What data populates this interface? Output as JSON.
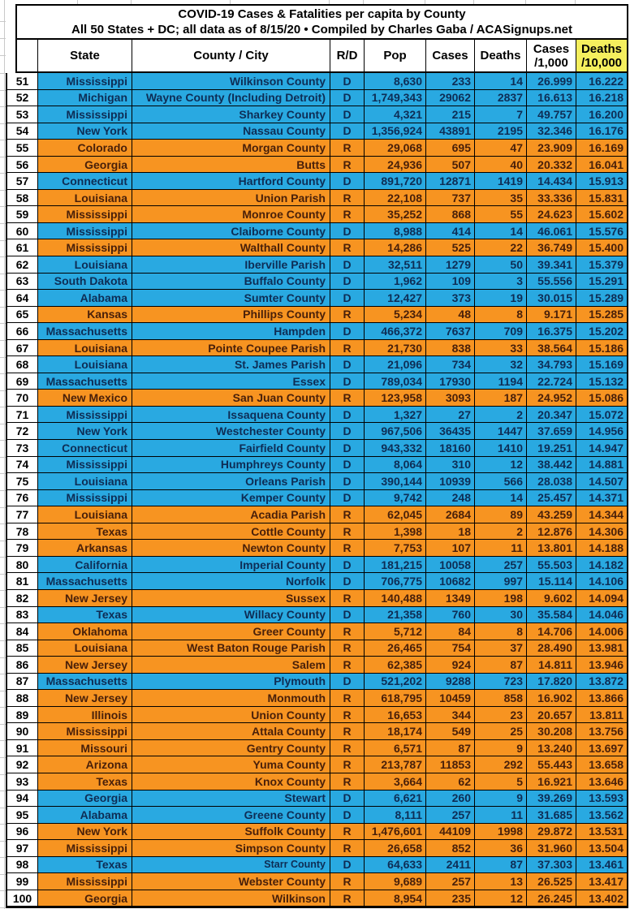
{
  "title": {
    "line1": "COVID-19 Cases & Fatalities per capita by County",
    "line2": "All 50 States + DC; all data as of 8/15/20  • Compiled by Charles Gaba / ACASignups.net"
  },
  "colors": {
    "dem_row": "#29A9E1",
    "rep_row": "#F79421",
    "dem_text": "#0E2D55",
    "rep_text": "#49200A",
    "deaths_header_bg": "#F5EF5E"
  },
  "table": {
    "columns": [
      "",
      "State",
      "County / City",
      "R/D",
      "Pop",
      "Cases",
      "Deaths",
      "Cases\n/1,000",
      "Deaths\n/10,000"
    ],
    "rows": [
      {
        "rank": "51",
        "state": "Mississippi",
        "county": "Wilkinson County",
        "party": "D",
        "pop": "8,630",
        "cases": "233",
        "deaths": "14",
        "per1000": "26.999",
        "per10000": "16.222"
      },
      {
        "rank": "52",
        "state": "Michigan",
        "county": "Wayne County (Including Detroit)",
        "party": "D",
        "pop": "1,749,343",
        "cases": "29062",
        "deaths": "2837",
        "per1000": "16.613",
        "per10000": "16.218"
      },
      {
        "rank": "53",
        "state": "Mississippi",
        "county": "Sharkey County",
        "party": "D",
        "pop": "4,321",
        "cases": "215",
        "deaths": "7",
        "per1000": "49.757",
        "per10000": "16.200"
      },
      {
        "rank": "54",
        "state": "New York",
        "county": "Nassau County",
        "party": "D",
        "pop": "1,356,924",
        "cases": "43891",
        "deaths": "2195",
        "per1000": "32.346",
        "per10000": "16.176"
      },
      {
        "rank": "55",
        "state": "Colorado",
        "county": "Morgan County",
        "party": "R",
        "pop": "29,068",
        "cases": "695",
        "deaths": "47",
        "per1000": "23.909",
        "per10000": "16.169"
      },
      {
        "rank": "56",
        "state": "Georgia",
        "county": "Butts",
        "party": "R",
        "pop": "24,936",
        "cases": "507",
        "deaths": "40",
        "per1000": "20.332",
        "per10000": "16.041"
      },
      {
        "rank": "57",
        "state": "Connecticut",
        "county": "Hartford County",
        "party": "D",
        "pop": "891,720",
        "cases": "12871",
        "deaths": "1419",
        "per1000": "14.434",
        "per10000": "15.913"
      },
      {
        "rank": "58",
        "state": "Louisiana",
        "county": "Union Parish",
        "party": "R",
        "pop": "22,108",
        "cases": "737",
        "deaths": "35",
        "per1000": "33.336",
        "per10000": "15.831"
      },
      {
        "rank": "59",
        "state": "Mississippi",
        "county": "Monroe County",
        "party": "R",
        "pop": "35,252",
        "cases": "868",
        "deaths": "55",
        "per1000": "24.623",
        "per10000": "15.602"
      },
      {
        "rank": "60",
        "state": "Mississippi",
        "county": "Claiborne County",
        "party": "D",
        "pop": "8,988",
        "cases": "414",
        "deaths": "14",
        "per1000": "46.061",
        "per10000": "15.576"
      },
      {
        "rank": "61",
        "state": "Mississippi",
        "county": "Walthall County",
        "party": "R",
        "pop": "14,286",
        "cases": "525",
        "deaths": "22",
        "per1000": "36.749",
        "per10000": "15.400"
      },
      {
        "rank": "62",
        "state": "Louisiana",
        "county": "Iberville Parish",
        "party": "D",
        "pop": "32,511",
        "cases": "1279",
        "deaths": "50",
        "per1000": "39.341",
        "per10000": "15.379"
      },
      {
        "rank": "63",
        "state": "South Dakota",
        "county": "Buffalo County",
        "party": "D",
        "pop": "1,962",
        "cases": "109",
        "deaths": "3",
        "per1000": "55.556",
        "per10000": "15.291"
      },
      {
        "rank": "64",
        "state": "Alabama",
        "county": "Sumter County",
        "party": "D",
        "pop": "12,427",
        "cases": "373",
        "deaths": "19",
        "per1000": "30.015",
        "per10000": "15.289"
      },
      {
        "rank": "65",
        "state": "Kansas",
        "county": "Phillips County",
        "party": "R",
        "pop": "5,234",
        "cases": "48",
        "deaths": "8",
        "per1000": "9.171",
        "per10000": "15.285"
      },
      {
        "rank": "66",
        "state": "Massachusetts",
        "county": "Hampden",
        "party": "D",
        "pop": "466,372",
        "cases": "7637",
        "deaths": "709",
        "per1000": "16.375",
        "per10000": "15.202"
      },
      {
        "rank": "67",
        "state": "Louisiana",
        "county": "Pointe Coupee Parish",
        "party": "R",
        "pop": "21,730",
        "cases": "838",
        "deaths": "33",
        "per1000": "38.564",
        "per10000": "15.186"
      },
      {
        "rank": "68",
        "state": "Louisiana",
        "county": "St. James Parish",
        "party": "D",
        "pop": "21,096",
        "cases": "734",
        "deaths": "32",
        "per1000": "34.793",
        "per10000": "15.169"
      },
      {
        "rank": "69",
        "state": "Massachusetts",
        "county": "Essex",
        "party": "D",
        "pop": "789,034",
        "cases": "17930",
        "deaths": "1194",
        "per1000": "22.724",
        "per10000": "15.132"
      },
      {
        "rank": "70",
        "state": "New Mexico",
        "county": "San Juan County",
        "party": "R",
        "pop": "123,958",
        "cases": "3093",
        "deaths": "187",
        "per1000": "24.952",
        "per10000": "15.086"
      },
      {
        "rank": "71",
        "state": "Mississippi",
        "county": "Issaquena County",
        "party": "D",
        "pop": "1,327",
        "cases": "27",
        "deaths": "2",
        "per1000": "20.347",
        "per10000": "15.072"
      },
      {
        "rank": "72",
        "state": "New York",
        "county": "Westchester County",
        "party": "D",
        "pop": "967,506",
        "cases": "36435",
        "deaths": "1447",
        "per1000": "37.659",
        "per10000": "14.956"
      },
      {
        "rank": "73",
        "state": "Connecticut",
        "county": "Fairfield County",
        "party": "D",
        "pop": "943,332",
        "cases": "18160",
        "deaths": "1410",
        "per1000": "19.251",
        "per10000": "14.947"
      },
      {
        "rank": "74",
        "state": "Mississippi",
        "county": "Humphreys County",
        "party": "D",
        "pop": "8,064",
        "cases": "310",
        "deaths": "12",
        "per1000": "38.442",
        "per10000": "14.881"
      },
      {
        "rank": "75",
        "state": "Louisiana",
        "county": "Orleans Parish",
        "party": "D",
        "pop": "390,144",
        "cases": "10939",
        "deaths": "566",
        "per1000": "28.038",
        "per10000": "14.507"
      },
      {
        "rank": "76",
        "state": "Mississippi",
        "county": "Kemper County",
        "party": "D",
        "pop": "9,742",
        "cases": "248",
        "deaths": "14",
        "per1000": "25.457",
        "per10000": "14.371"
      },
      {
        "rank": "77",
        "state": "Louisiana",
        "county": "Acadia Parish",
        "party": "R",
        "pop": "62,045",
        "cases": "2684",
        "deaths": "89",
        "per1000": "43.259",
        "per10000": "14.344"
      },
      {
        "rank": "78",
        "state": "Texas",
        "county": "Cottle County",
        "party": "R",
        "pop": "1,398",
        "cases": "18",
        "deaths": "2",
        "per1000": "12.876",
        "per10000": "14.306"
      },
      {
        "rank": "79",
        "state": "Arkansas",
        "county": "Newton County",
        "party": "R",
        "pop": "7,753",
        "cases": "107",
        "deaths": "11",
        "per1000": "13.801",
        "per10000": "14.188"
      },
      {
        "rank": "80",
        "state": "California",
        "county": "Imperial County",
        "party": "D",
        "pop": "181,215",
        "cases": "10058",
        "deaths": "257",
        "per1000": "55.503",
        "per10000": "14.182"
      },
      {
        "rank": "81",
        "state": "Massachusetts",
        "county": "Norfolk",
        "party": "D",
        "pop": "706,775",
        "cases": "10682",
        "deaths": "997",
        "per1000": "15.114",
        "per10000": "14.106"
      },
      {
        "rank": "82",
        "state": "New Jersey",
        "county": "Sussex",
        "party": "R",
        "pop": "140,488",
        "cases": "1349",
        "deaths": "198",
        "per1000": "9.602",
        "per10000": "14.094"
      },
      {
        "rank": "83",
        "state": "Texas",
        "county": "Willacy County",
        "party": "D",
        "pop": "21,358",
        "cases": "760",
        "deaths": "30",
        "per1000": "35.584",
        "per10000": "14.046"
      },
      {
        "rank": "84",
        "state": "Oklahoma",
        "county": "Greer County",
        "party": "R",
        "pop": "5,712",
        "cases": "84",
        "deaths": "8",
        "per1000": "14.706",
        "per10000": "14.006"
      },
      {
        "rank": "85",
        "state": "Louisiana",
        "county": "West Baton Rouge Parish",
        "party": "R",
        "pop": "26,465",
        "cases": "754",
        "deaths": "37",
        "per1000": "28.490",
        "per10000": "13.981"
      },
      {
        "rank": "86",
        "state": "New Jersey",
        "county": "Salem",
        "party": "R",
        "pop": "62,385",
        "cases": "924",
        "deaths": "87",
        "per1000": "14.811",
        "per10000": "13.946"
      },
      {
        "rank": "87",
        "state": "Massachusetts",
        "county": "Plymouth",
        "party": "D",
        "pop": "521,202",
        "cases": "9288",
        "deaths": "723",
        "per1000": "17.820",
        "per10000": "13.872"
      },
      {
        "rank": "88",
        "state": "New Jersey",
        "county": "Monmouth",
        "party": "R",
        "pop": "618,795",
        "cases": "10459",
        "deaths": "858",
        "per1000": "16.902",
        "per10000": "13.866"
      },
      {
        "rank": "89",
        "state": "Illinois",
        "county": "Union County",
        "party": "R",
        "pop": "16,653",
        "cases": "344",
        "deaths": "23",
        "per1000": "20.657",
        "per10000": "13.811"
      },
      {
        "rank": "90",
        "state": "Mississippi",
        "county": "Attala County",
        "party": "R",
        "pop": "18,174",
        "cases": "549",
        "deaths": "25",
        "per1000": "30.208",
        "per10000": "13.756"
      },
      {
        "rank": "91",
        "state": "Missouri",
        "county": "Gentry County",
        "party": "R",
        "pop": "6,571",
        "cases": "87",
        "deaths": "9",
        "per1000": "13.240",
        "per10000": "13.697"
      },
      {
        "rank": "92",
        "state": "Arizona",
        "county": "Yuma County",
        "party": "R",
        "pop": "213,787",
        "cases": "11853",
        "deaths": "292",
        "per1000": "55.443",
        "per10000": "13.658"
      },
      {
        "rank": "93",
        "state": "Texas",
        "county": "Knox County",
        "party": "R",
        "pop": "3,664",
        "cases": "62",
        "deaths": "5",
        "per1000": "16.921",
        "per10000": "13.646"
      },
      {
        "rank": "94",
        "state": "Georgia",
        "county": "Stewart",
        "party": "D",
        "pop": "6,621",
        "cases": "260",
        "deaths": "9",
        "per1000": "39.269",
        "per10000": "13.593"
      },
      {
        "rank": "95",
        "state": "Alabama",
        "county": "Greene County",
        "party": "D",
        "pop": "8,111",
        "cases": "257",
        "deaths": "11",
        "per1000": "31.685",
        "per10000": "13.562"
      },
      {
        "rank": "96",
        "state": "New York",
        "county": "Suffolk County",
        "party": "R",
        "pop": "1,476,601",
        "cases": "44109",
        "deaths": "1998",
        "per1000": "29.872",
        "per10000": "13.531"
      },
      {
        "rank": "97",
        "state": "Mississippi",
        "county": "Simpson County",
        "party": "R",
        "pop": "26,658",
        "cases": "852",
        "deaths": "36",
        "per1000": "31.960",
        "per10000": "13.504"
      },
      {
        "rank": "98",
        "state": "Texas",
        "county": "Starr County",
        "party": "D",
        "pop": "64,633",
        "cases": "2411",
        "deaths": "87",
        "per1000": "37.303",
        "per10000": "13.461",
        "shrink": true
      },
      {
        "rank": "99",
        "state": "Mississippi",
        "county": "Webster County",
        "party": "R",
        "pop": "9,689",
        "cases": "257",
        "deaths": "13",
        "per1000": "26.525",
        "per10000": "13.417"
      },
      {
        "rank": "100",
        "state": "Georgia",
        "county": "Wilkinson",
        "party": "R",
        "pop": "8,954",
        "cases": "235",
        "deaths": "12",
        "per1000": "26.245",
        "per10000": "13.402"
      }
    ]
  }
}
